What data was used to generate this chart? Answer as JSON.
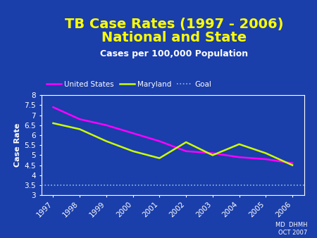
{
  "title_line1": "TB Case Rates (1997 - 2006)",
  "title_line2": "National and State",
  "subtitle": "Cases per 100,000 Population",
  "credit": "MD  DHMH\nOCT 2007",
  "years": [
    1997,
    1998,
    1999,
    2000,
    2001,
    2002,
    2003,
    2004,
    2005,
    2006
  ],
  "united_states": [
    7.4,
    6.8,
    6.5,
    6.1,
    5.7,
    5.2,
    5.1,
    4.9,
    4.8,
    4.6
  ],
  "maryland": [
    6.6,
    6.3,
    5.7,
    5.2,
    4.85,
    5.65,
    5.0,
    5.55,
    5.1,
    4.5
  ],
  "goal": 3.5,
  "ylim": [
    3.0,
    8.0
  ],
  "yticks": [
    3.0,
    3.5,
    4.0,
    4.5,
    5.0,
    5.5,
    6.0,
    6.5,
    7.0,
    7.5,
    8.0
  ],
  "background_color": "#1a3eaa",
  "plot_bg_color": "#1a3eaa",
  "title_color": "#ffff00",
  "subtitle_color": "#ffffff",
  "us_color": "#ff00ff",
  "md_color": "#ccff00",
  "goal_color": "#99bbdd",
  "ylabel": "Case Rate",
  "ylabel_color": "#ffffff",
  "tick_color": "#ffffff",
  "axis_color": "#ffffff",
  "legend_text_color": "#ffffff",
  "title_fontsize": 14,
  "subtitle_fontsize": 9,
  "axis_fontsize": 7.5,
  "ylabel_fontsize": 8
}
